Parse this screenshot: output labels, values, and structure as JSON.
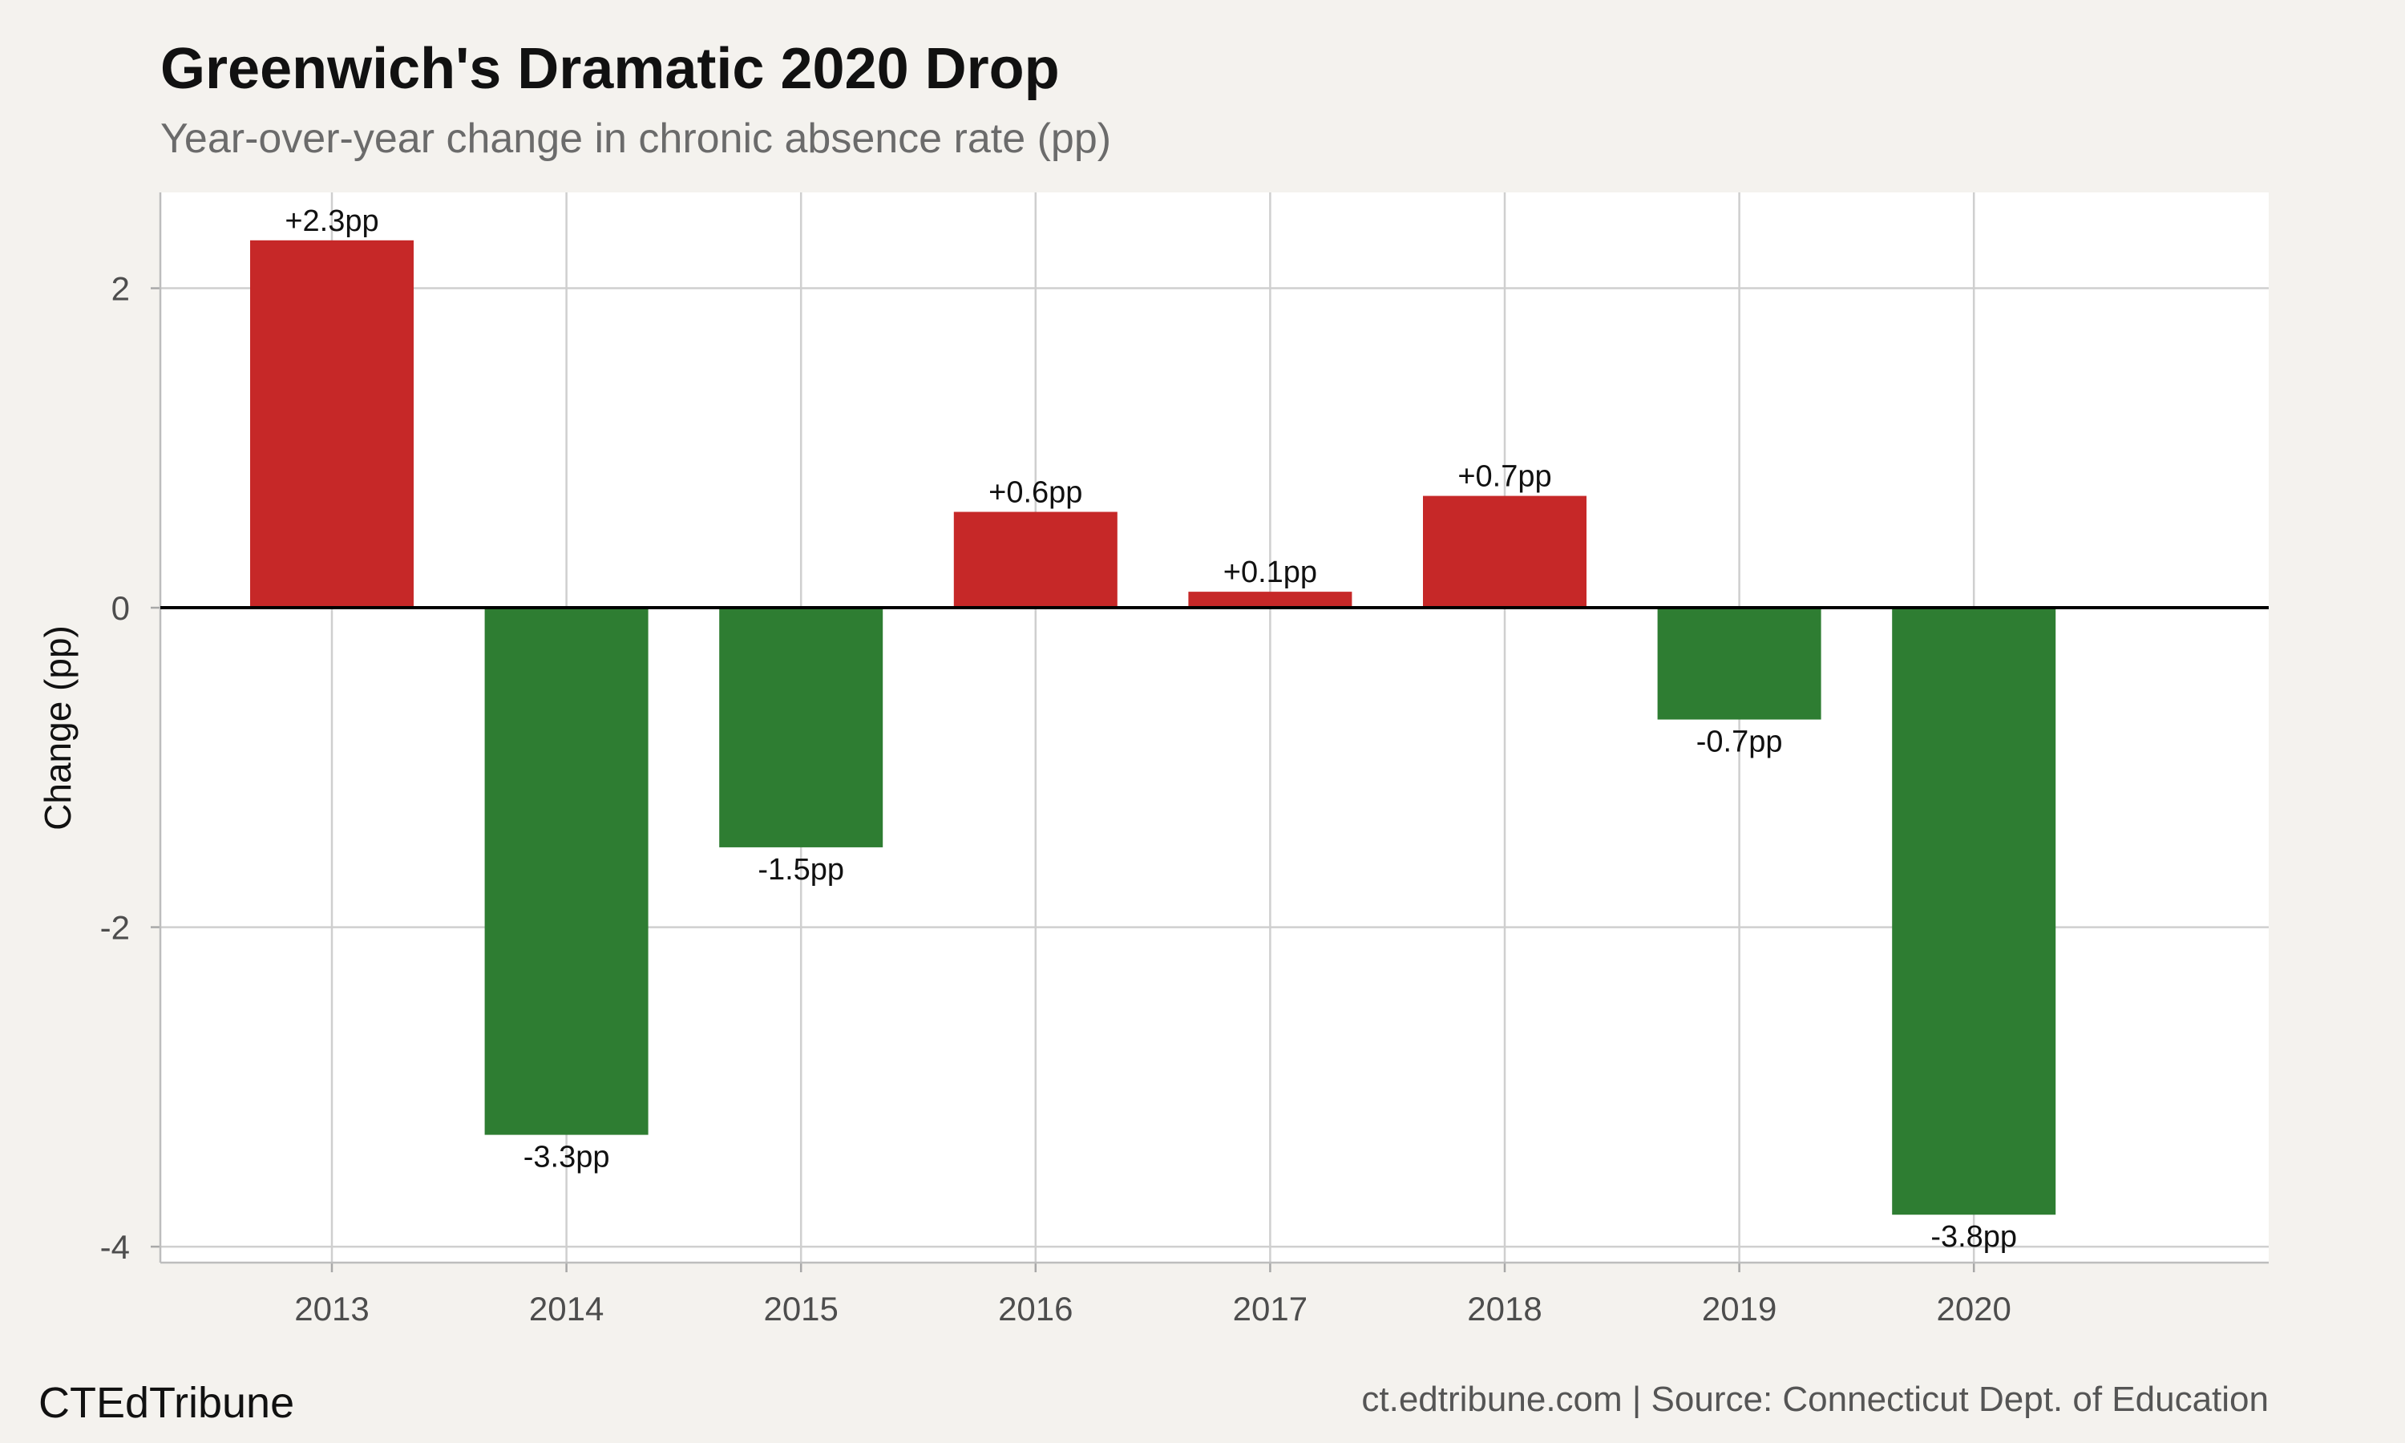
{
  "chart_data": {
    "type": "bar",
    "title": "Greenwich's Dramatic 2020 Drop",
    "subtitle": "Year-over-year change in chronic absence rate (pp)",
    "xlabel": "",
    "ylabel": "Change (pp)",
    "categories": [
      "2013",
      "2014",
      "2015",
      "2016",
      "2017",
      "2018",
      "2019",
      "2020"
    ],
    "values": [
      2.3,
      -3.3,
      -1.5,
      0.6,
      0.1,
      0.7,
      -0.7,
      -3.8
    ],
    "data_labels": [
      "+2.3pp",
      "-3.3pp",
      "-1.5pp",
      "+0.6pp",
      "+0.1pp",
      "+0.7pp",
      "-0.7pp",
      "-3.8pp"
    ],
    "ylim": [
      -4.1,
      2.6
    ],
    "yticks": [
      -4,
      -2,
      0,
      2
    ],
    "ytick_labels": [
      "-4",
      "-2",
      "0",
      "2"
    ],
    "grid": true,
    "legend": "none",
    "colors": {
      "positive": "#c62828",
      "negative": "#2e7d32",
      "panel_background": "#ffffff",
      "page_background": "#f4f2ee",
      "gridline": "#cfcfcf",
      "zero_line": "#000000"
    }
  },
  "footer": {
    "brand": "CTEdTribune",
    "source": "ct.edtribune.com | Source: Connecticut Dept. of Education"
  }
}
